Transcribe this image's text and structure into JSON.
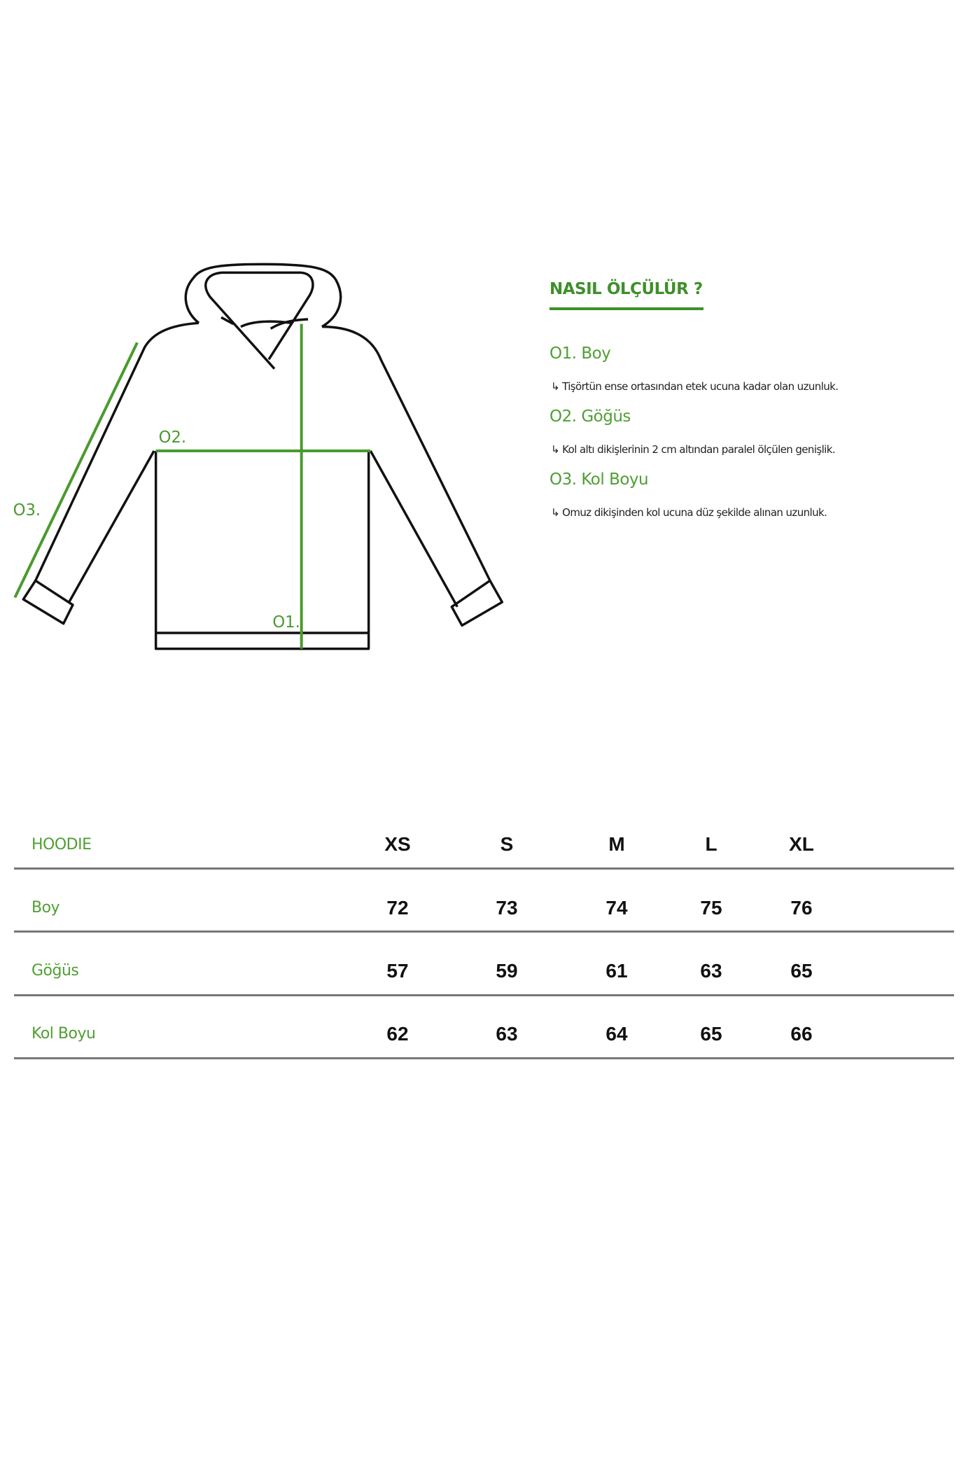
{
  "diagram": {
    "labels": [
      "O1.",
      "O2.",
      "O3."
    ],
    "accent_color": "#4a9a2e",
    "icon": "hoodie-outline"
  },
  "guide": {
    "title": "NASIL ÖLÇÜLÜR ?",
    "items": [
      {
        "heading": "O1. Boy",
        "description": "Tişörtün ense ortasından etek ucuna kadar olan uzunluk."
      },
      {
        "heading": "O2. Göğüs",
        "description": "Kol altı dikişlerinin 2 cm altından paralel ölçülen genişlik."
      },
      {
        "heading": "O3. Kol Boyu",
        "description": "Omuz dikişinden kol ucuna düz şekilde alınan uzunluk."
      }
    ],
    "arrow_icon": "↳"
  },
  "table": {
    "product": "HOODIE",
    "sizes": [
      "XS",
      "S",
      "M",
      "L",
      "XL"
    ],
    "rows": [
      {
        "label": "Boy",
        "values": [
          "72",
          "73",
          "74",
          "75",
          "76"
        ]
      },
      {
        "label": "Göğüs",
        "values": [
          "57",
          "59",
          "61",
          "63",
          "65"
        ]
      },
      {
        "label": "Kol Boyu",
        "values": [
          "62",
          "63",
          "64",
          "65",
          "66"
        ]
      }
    ]
  }
}
